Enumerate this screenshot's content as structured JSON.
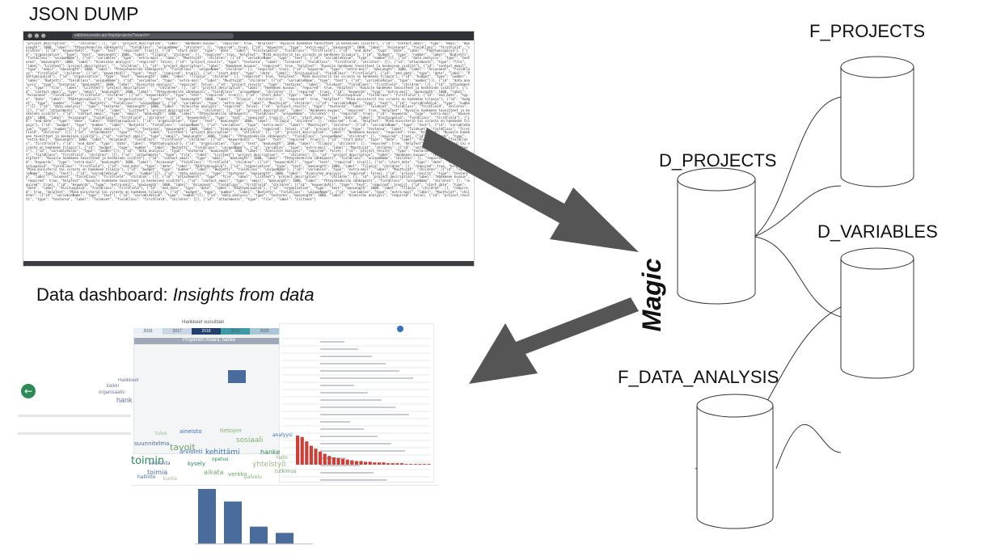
{
  "json_dump": {
    "title": "JSON DUMP",
    "url_text": "valtioneuvosto.api.fi/api/projects/?search=",
    "content": "\"project_description\": \"\", \"children\": [], \"id\": \"project_description\", \"label\": \"Hankkeen kuvaus\", \"required\": true, \"helpText\": \"Kuvaile hankkeen tavoitteet ja keskeinen sisältö\"}, {\"id\": \"contact_email\", \"type\": \"email\", \"maxLength\": 1000, \"label\": \"Yhteyshenkilön sähköposti\", \"fieldClass\": \"uniqueName\", \"children\": [], \"required\": true}, {\"id\": \"keywords\", \"type\": \"extra-mail\", \"maxLength\": 1000, \"label\": \"Asiasanat\", \"fieldClass\": \"firstField\", \"children\": [{\"id\": \"keywordsAll\", \"type\": \"text\", \"required\": true}]}, {\"id\": \"start_date\", \"type\": \"date\", \"label\": \"Aloituspäivä\", \"fieldClass\": \"firstField\"}, {\"id\": \"end_date\", \"type\": \"date\", \"label\": \"Päättymispäivä\"}, {\"id\": \"organisation\", \"type\": \"text\", \"maxLength\": 1000, \"label\": \"Tilaaja\", \"children\": [], \"required\": true, \"helpText\": \"Mikä ministeriö tai virasto on hankkeen tilaaja\"}, {\"id\": \"budget\", \"type\": \"number\", \"label\": \"Budjetti\", \"fieldClass\": \"uniqueName\"}, {\"id\": \"variables\", \"type\": \"extra-mail\", \"label\": \"Muuttujat\", \"children\": [{\"id\": \"variableName\", \"type\": \"text\"}, {\"id\": \"variableValue\", \"type\": \"number\"}]}, {\"id\": \"data_analysis\", \"type\": \"textarea\", \"maxLength\": 1000, \"label\": \"Aineiston analyysi\", \"required\": false}, {\"id\": \"project_results\", \"type\": \"textarea\", \"label\": \"Tulokset\", \"fieldClass\": \"firstField\", \"children\": []}, {\"id\": \"attachments\", \"type\": \"file\", \"label\": \"Liitteet\"}"
  },
  "dashboard": {
    "title_prefix": "Data dashboard: ",
    "title_emphasis": "Insights from data",
    "tabs": [
      "2016",
      "2017",
      "2018",
      "2019",
      "2020"
    ],
    "header_text": "Hankkeet vuosittain",
    "panel_text": "Projektien määrä, hanke",
    "side_heading": "Hankkeet",
    "side_lines": [
      "kaikki",
      "organisaatio",
      "hank"
    ],
    "wordcloud_words": [
      "toimin",
      "tavoit",
      "kehittämi",
      "sosiaali",
      "toimia",
      "yhteistyö",
      "hanke",
      "aikata",
      "aineisto",
      "tietojen",
      "suunnitelma",
      "tulos",
      "kysely",
      "verkko",
      "analyysi",
      "palvelu",
      "hallinto",
      "kunta",
      "opetus",
      "tutkimus",
      "arviointi",
      "tieto",
      "seuranta"
    ],
    "bar_chart_values": [
      35,
      27,
      11,
      7
    ],
    "red_histogram_values": [
      40,
      38,
      32,
      26,
      22,
      18,
      15,
      12,
      10,
      9,
      8,
      7,
      6,
      5,
      5,
      4,
      4,
      3,
      3,
      3,
      2,
      2,
      2,
      2,
      1,
      1,
      1,
      1,
      1,
      1
    ],
    "colors": {
      "red": "#c8423a",
      "blue": "#4a6c9c",
      "teal": "#3f9aa8",
      "navy": "#23406b",
      "green": "#2e8b57"
    }
  },
  "arrow_label": "Magic",
  "databases": [
    {
      "id": "f_projects",
      "label": "F_PROJECTS"
    },
    {
      "id": "d_projects",
      "label": "D_PROJECTS"
    },
    {
      "id": "d_variables",
      "label": "D_VARIABLES"
    },
    {
      "id": "f_data_analysis",
      "label": "F_DATA_ANALYSIS"
    }
  ],
  "arrow_color": "#555555"
}
